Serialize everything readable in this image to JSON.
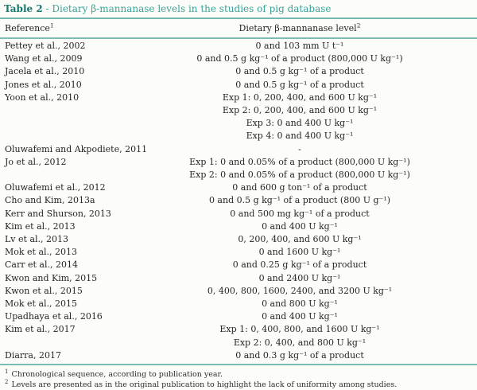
{
  "title": {
    "label": "Table 2",
    "separator": " - ",
    "text": "Dietary β-mannanase levels in the studies of pig database"
  },
  "accent_color": "#74b8b2",
  "title_color": "#15776e",
  "columns": [
    {
      "label": "Reference",
      "superscript": "1"
    },
    {
      "label": "Dietary β-mannanase level",
      "superscript": "2"
    }
  ],
  "rows": [
    {
      "reference": "Pettey et al., 2002",
      "levels": [
        "0 and 103 mm U t⁻¹"
      ]
    },
    {
      "reference": "Wang et al., 2009",
      "levels": [
        "0 and 0.5 g kg⁻¹ of a product (800,000 U kg⁻¹)"
      ]
    },
    {
      "reference": "Jacela et al., 2010",
      "levels": [
        "0 and 0.5 g kg⁻¹ of a product"
      ]
    },
    {
      "reference": "Jones et al., 2010",
      "levels": [
        "0 and 0.5 g kg⁻¹ of a product"
      ]
    },
    {
      "reference": "Yoon et al., 2010",
      "levels": [
        "Exp 1: 0, 200, 400, and 600 U kg⁻¹",
        "Exp 2: 0, 200, 400, and 600 U kg⁻¹",
        "Exp 3: 0 and 400 U kg⁻¹",
        "Exp 4: 0 and 400 U kg⁻¹"
      ]
    },
    {
      "reference": "Oluwafemi and Akpodiete, 2011",
      "levels": [
        "-"
      ]
    },
    {
      "reference": "Jo et al., 2012",
      "levels": [
        "Exp 1: 0 and 0.05% of a product (800,000 U kg⁻¹)",
        "Exp 2: 0 and 0.05% of a product (800,000 U kg⁻¹)"
      ]
    },
    {
      "reference": "Oluwafemi et al., 2012",
      "levels": [
        "0 and 600 g ton⁻¹ of a product"
      ]
    },
    {
      "reference": "Cho and Kim, 2013a",
      "levels": [
        "0 and 0.5 g kg⁻¹ of a product (800 U g⁻¹)"
      ]
    },
    {
      "reference": "Kerr and Shurson, 2013",
      "levels": [
        "0 and 500 mg kg⁻¹ of a product"
      ]
    },
    {
      "reference": "Kim et al., 2013",
      "levels": [
        "0 and 400 U kg⁻¹"
      ]
    },
    {
      "reference": "Lv et al., 2013",
      "levels": [
        "0, 200, 400, and 600 U kg⁻¹"
      ]
    },
    {
      "reference": "Mok et al., 2013",
      "levels": [
        "0 and 1600 U kg⁻¹"
      ]
    },
    {
      "reference": "Carr et al., 2014",
      "levels": [
        "0 and 0.25 g kg⁻¹ of a product"
      ]
    },
    {
      "reference": "Kwon and Kim, 2015",
      "levels": [
        "0 and 2400 U kg⁻¹"
      ]
    },
    {
      "reference": "Kwon et al., 2015",
      "levels": [
        "0, 400, 800, 1600, 2400, and 3200 U kg⁻¹"
      ]
    },
    {
      "reference": "Mok et al., 2015",
      "levels": [
        "0 and 800 U kg⁻¹"
      ]
    },
    {
      "reference": "Upadhaya et al., 2016",
      "levels": [
        "0 and 400 U kg⁻¹"
      ]
    },
    {
      "reference": "Kim et al., 2017",
      "levels": [
        "Exp 1: 0, 400, 800, and 1600 U kg⁻¹",
        "Exp 2: 0, 400, and 800 U kg⁻¹"
      ]
    },
    {
      "reference": "Diarra, 2017",
      "levels": [
        "0 and 0.3 g kg⁻¹ of a product"
      ]
    }
  ],
  "footnotes": [
    {
      "marker": "1",
      "text": "Chronological sequence, according to publication year."
    },
    {
      "marker": "2",
      "text": "Levels are presented as in the original publication to highlight the lack of uniformity among studies."
    }
  ]
}
